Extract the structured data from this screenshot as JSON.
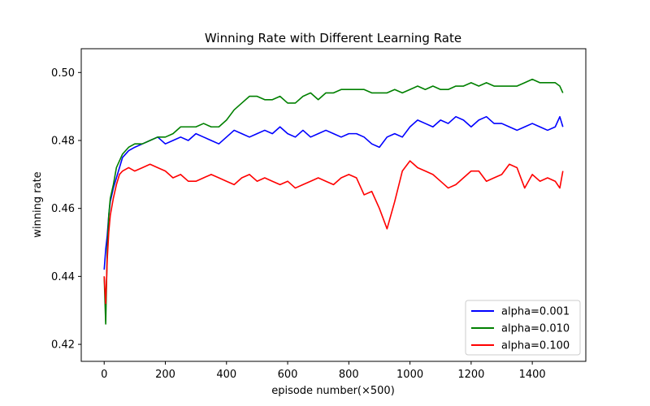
{
  "chart_data": {
    "type": "line",
    "title": "Winning Rate with Different Learning Rate",
    "xlabel": "episode number(×500)",
    "ylabel": "winning rate",
    "xlim": [
      -75,
      1575
    ],
    "ylim": [
      0.415,
      0.507
    ],
    "xticks": [
      0,
      200,
      400,
      600,
      800,
      1000,
      1200,
      1400
    ],
    "yticks": [
      0.42,
      0.44,
      0.46,
      0.48,
      0.5
    ],
    "ytick_labels": [
      "0.42",
      "0.44",
      "0.46",
      "0.48",
      "0.50"
    ],
    "grid": false,
    "legend_position": "bottom-right",
    "series": [
      {
        "name": "alpha=0.001",
        "color": "#0000ff",
        "x": [
          0,
          5,
          10,
          15,
          20,
          30,
          40,
          50,
          60,
          80,
          100,
          125,
          150,
          175,
          200,
          225,
          250,
          275,
          300,
          325,
          350,
          375,
          400,
          425,
          450,
          475,
          500,
          525,
          550,
          575,
          600,
          625,
          650,
          675,
          700,
          725,
          750,
          775,
          800,
          825,
          850,
          875,
          900,
          925,
          950,
          975,
          1000,
          1025,
          1050,
          1075,
          1100,
          1125,
          1150,
          1175,
          1200,
          1225,
          1250,
          1275,
          1300,
          1325,
          1350,
          1375,
          1400,
          1425,
          1450,
          1475,
          1490,
          1500
        ],
        "y": [
          0.442,
          0.448,
          0.452,
          0.458,
          0.462,
          0.466,
          0.469,
          0.472,
          0.475,
          0.477,
          0.478,
          0.479,
          0.48,
          0.481,
          0.479,
          0.48,
          0.481,
          0.48,
          0.482,
          0.481,
          0.48,
          0.479,
          0.481,
          0.483,
          0.482,
          0.481,
          0.482,
          0.483,
          0.482,
          0.484,
          0.482,
          0.481,
          0.483,
          0.481,
          0.482,
          0.483,
          0.482,
          0.481,
          0.482,
          0.482,
          0.481,
          0.479,
          0.478,
          0.481,
          0.482,
          0.481,
          0.484,
          0.486,
          0.485,
          0.484,
          0.486,
          0.485,
          0.487,
          0.486,
          0.484,
          0.486,
          0.487,
          0.485,
          0.485,
          0.484,
          0.483,
          0.484,
          0.485,
          0.484,
          0.483,
          0.484,
          0.487,
          0.484
        ]
      },
      {
        "name": "alpha=0.010",
        "color": "#008000",
        "x": [
          0,
          5,
          10,
          15,
          20,
          30,
          40,
          50,
          60,
          80,
          100,
          125,
          150,
          175,
          200,
          225,
          250,
          275,
          300,
          325,
          350,
          375,
          400,
          425,
          450,
          475,
          500,
          525,
          550,
          575,
          600,
          625,
          650,
          675,
          700,
          725,
          750,
          775,
          800,
          825,
          850,
          875,
          900,
          925,
          950,
          975,
          1000,
          1025,
          1050,
          1075,
          1100,
          1125,
          1150,
          1175,
          1200,
          1225,
          1250,
          1275,
          1300,
          1325,
          1350,
          1375,
          1400,
          1425,
          1450,
          1475,
          1490,
          1500
        ],
        "y": [
          0.44,
          0.426,
          0.448,
          0.458,
          0.463,
          0.467,
          0.472,
          0.474,
          0.476,
          0.478,
          0.479,
          0.479,
          0.48,
          0.481,
          0.481,
          0.482,
          0.484,
          0.484,
          0.484,
          0.485,
          0.484,
          0.484,
          0.486,
          0.489,
          0.491,
          0.493,
          0.493,
          0.492,
          0.492,
          0.493,
          0.491,
          0.491,
          0.493,
          0.494,
          0.492,
          0.494,
          0.494,
          0.495,
          0.495,
          0.495,
          0.495,
          0.494,
          0.494,
          0.494,
          0.495,
          0.494,
          0.495,
          0.496,
          0.495,
          0.496,
          0.495,
          0.495,
          0.496,
          0.496,
          0.497,
          0.496,
          0.497,
          0.496,
          0.496,
          0.496,
          0.496,
          0.497,
          0.498,
          0.497,
          0.497,
          0.497,
          0.496,
          0.494
        ]
      },
      {
        "name": "alpha=0.100",
        "color": "#ff0000",
        "x": [
          0,
          5,
          10,
          15,
          20,
          30,
          40,
          50,
          60,
          80,
          100,
          125,
          150,
          175,
          200,
          225,
          250,
          275,
          300,
          325,
          350,
          375,
          400,
          425,
          450,
          475,
          500,
          525,
          550,
          575,
          600,
          625,
          650,
          675,
          700,
          725,
          750,
          775,
          800,
          825,
          850,
          875,
          900,
          925,
          950,
          975,
          1000,
          1025,
          1050,
          1075,
          1100,
          1125,
          1150,
          1175,
          1200,
          1225,
          1250,
          1275,
          1300,
          1325,
          1350,
          1375,
          1400,
          1425,
          1450,
          1475,
          1490,
          1500
        ],
        "y": [
          0.44,
          0.432,
          0.445,
          0.453,
          0.458,
          0.463,
          0.467,
          0.47,
          0.471,
          0.472,
          0.471,
          0.472,
          0.473,
          0.472,
          0.471,
          0.469,
          0.47,
          0.468,
          0.468,
          0.469,
          0.47,
          0.469,
          0.468,
          0.467,
          0.469,
          0.47,
          0.468,
          0.469,
          0.468,
          0.467,
          0.468,
          0.466,
          0.467,
          0.468,
          0.469,
          0.468,
          0.467,
          0.469,
          0.47,
          0.469,
          0.464,
          0.465,
          0.46,
          0.454,
          0.462,
          0.471,
          0.474,
          0.472,
          0.471,
          0.47,
          0.468,
          0.466,
          0.467,
          0.469,
          0.471,
          0.471,
          0.468,
          0.469,
          0.47,
          0.473,
          0.472,
          0.466,
          0.47,
          0.468,
          0.469,
          0.468,
          0.466,
          0.471
        ]
      }
    ]
  }
}
